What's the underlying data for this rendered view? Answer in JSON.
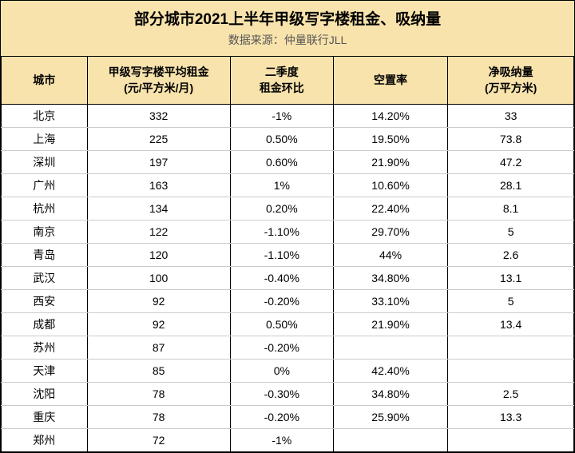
{
  "header": {
    "title": "部分城市2021上半年甲级写字楼租金、吸纳量",
    "subtitle_prefix": "数据来源：",
    "subtitle_source": "仲量联行JLL"
  },
  "table": {
    "columns": [
      {
        "key": "city",
        "label": "城市"
      },
      {
        "key": "rent",
        "label_line1": "甲级写字楼平均租金",
        "label_line2": "(元/平方米/月)"
      },
      {
        "key": "q2",
        "label_line1": "二季度",
        "label_line2": "租金环比"
      },
      {
        "key": "vacancy",
        "label": "空置率"
      },
      {
        "key": "absorption",
        "label_line1": "净吸纳量",
        "label_line2": "(万平方米)"
      }
    ],
    "rows": [
      {
        "city": "北京",
        "rent": "332",
        "q2": "-1%",
        "vacancy": "14.20%",
        "absorption": "33"
      },
      {
        "city": "上海",
        "rent": "225",
        "q2": "0.50%",
        "vacancy": "19.50%",
        "absorption": "73.8"
      },
      {
        "city": "深圳",
        "rent": "197",
        "q2": "0.60%",
        "vacancy": "21.90%",
        "absorption": "47.2"
      },
      {
        "city": "广州",
        "rent": "163",
        "q2": "1%",
        "vacancy": "10.60%",
        "absorption": "28.1"
      },
      {
        "city": "杭州",
        "rent": "134",
        "q2": "0.20%",
        "vacancy": "22.40%",
        "absorption": "8.1"
      },
      {
        "city": "南京",
        "rent": "122",
        "q2": "-1.10%",
        "vacancy": "29.70%",
        "absorption": "5"
      },
      {
        "city": "青岛",
        "rent": "120",
        "q2": "-1.10%",
        "vacancy": "44%",
        "absorption": "2.6"
      },
      {
        "city": "武汉",
        "rent": "100",
        "q2": "-0.40%",
        "vacancy": "34.80%",
        "absorption": "13.1"
      },
      {
        "city": "西安",
        "rent": "92",
        "q2": "-0.20%",
        "vacancy": "33.10%",
        "absorption": "5"
      },
      {
        "city": "成都",
        "rent": "92",
        "q2": "0.50%",
        "vacancy": "21.90%",
        "absorption": "13.4"
      },
      {
        "city": "苏州",
        "rent": "87",
        "q2": "-0.20%",
        "vacancy": "",
        "absorption": ""
      },
      {
        "city": "天津",
        "rent": "85",
        "q2": "0%",
        "vacancy": "42.40%",
        "absorption": ""
      },
      {
        "city": "沈阳",
        "rent": "78",
        "q2": "-0.30%",
        "vacancy": "34.80%",
        "absorption": "2.5"
      },
      {
        "city": "重庆",
        "rent": "78",
        "q2": "-0.20%",
        "vacancy": "25.90%",
        "absorption": "13.3"
      },
      {
        "city": "郑州",
        "rent": "72",
        "q2": "-1%",
        "vacancy": "",
        "absorption": ""
      }
    ]
  },
  "styling": {
    "header_bg": "#f8e3ac",
    "row_bg": "#ffffff",
    "border_color": "#000000",
    "inner_row_border": "#cccccc",
    "title_fontsize": 19,
    "header_fontsize": 14,
    "cell_fontsize": 14,
    "subtitle_color": "#555555"
  }
}
